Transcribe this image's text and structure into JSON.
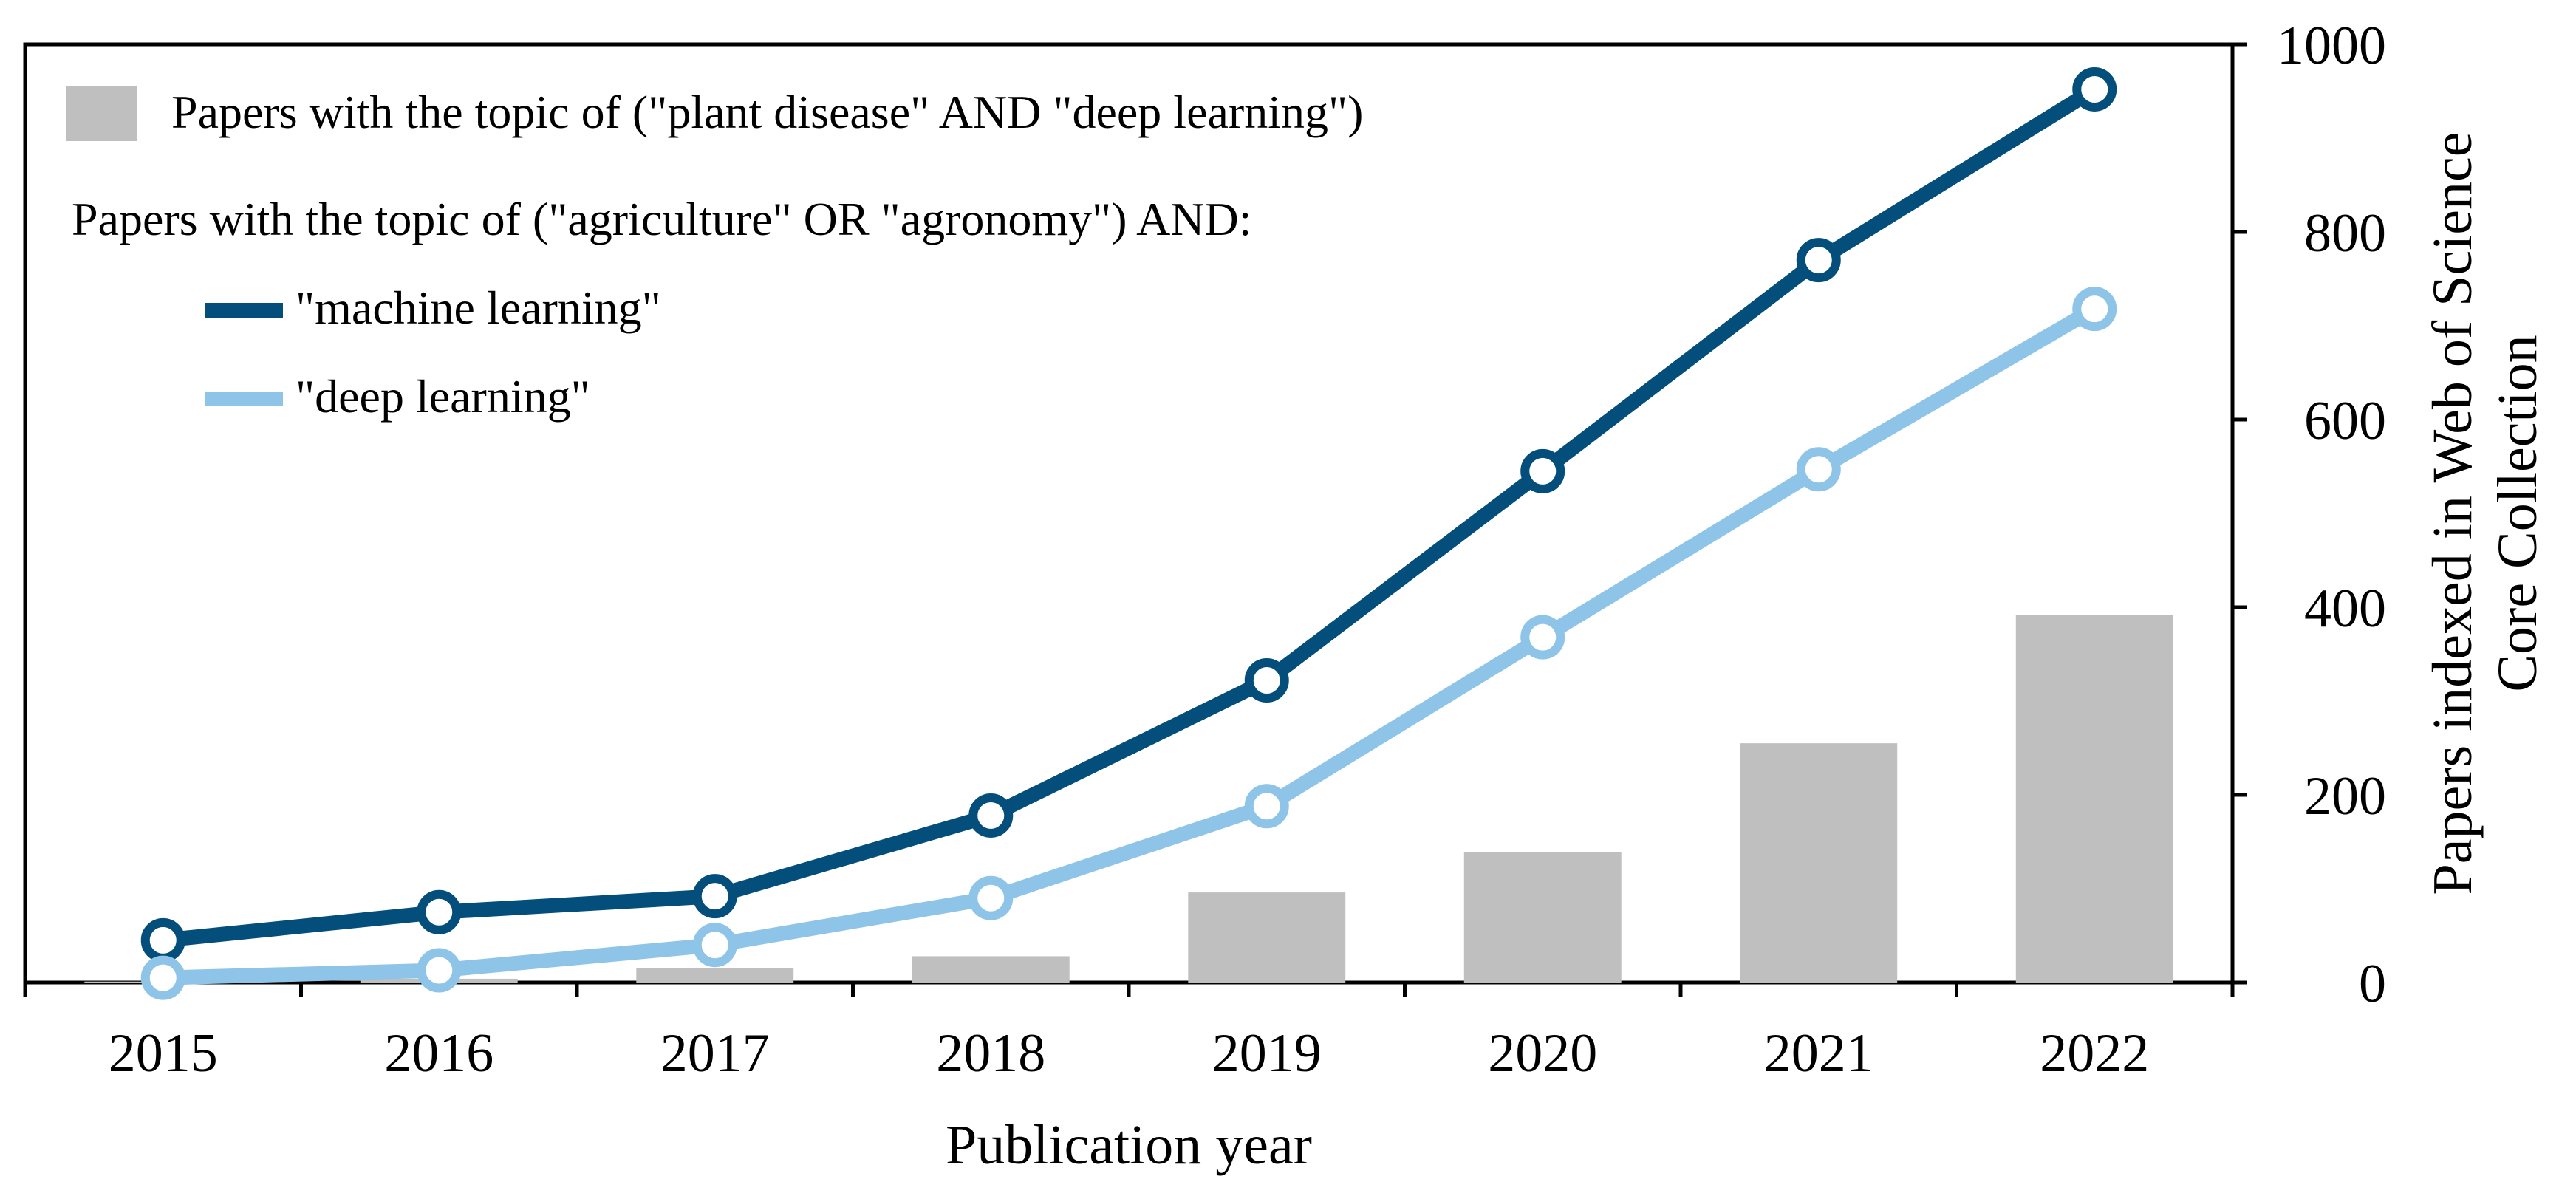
{
  "chart_data": {
    "type": "bar+line",
    "categories": [
      "2015",
      "2016",
      "2017",
      "2018",
      "2019",
      "2020",
      "2021",
      "2022"
    ],
    "bars": {
      "name": "Papers with the topic of (\"plant disease\" AND \"deep learning\")",
      "values": [
        1,
        4,
        15,
        28,
        96,
        139,
        255,
        392
      ],
      "color": "#bfbfbf"
    },
    "series": [
      {
        "name": "\"machine learning\"",
        "values": [
          45,
          75,
          92,
          178,
          322,
          545,
          770,
          952
        ],
        "color": "#034e7b"
      },
      {
        "name": "\"deep learning\"",
        "values": [
          5,
          13,
          40,
          90,
          188,
          368,
          547,
          718
        ],
        "color": "#8dc4e8"
      }
    ],
    "legend_subtitle": "Papers with the topic of (\"agriculture\" OR \"agronomy\") AND:",
    "xlabel": "Publication year",
    "ylabel_lines": [
      "Papers indexed in Web of Science",
      "Core Collection"
    ],
    "y_axis_side": "right",
    "ylim": [
      0,
      1000
    ],
    "yticks": [
      0,
      200,
      400,
      600,
      800,
      1000
    ],
    "grid": false,
    "legend_position": "top-left"
  }
}
